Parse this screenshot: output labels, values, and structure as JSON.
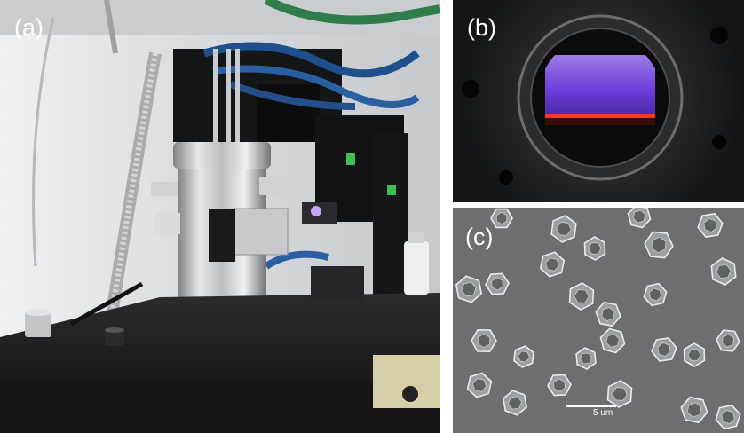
{
  "panels": [
    {
      "id": "a",
      "label": "(a)"
    },
    {
      "id": "b",
      "label": "(b)"
    },
    {
      "id": "c",
      "label": "(c)"
    }
  ],
  "scale_bar": {
    "text": "5 um"
  },
  "colors": {
    "plasma": "#6a3cd8",
    "plasma_edge": "#ff3a1a",
    "sem_background": "#6e6e70",
    "steel": "#bfc4c8",
    "hose": "#1f4f8c",
    "bench": "#1a1a1a"
  }
}
